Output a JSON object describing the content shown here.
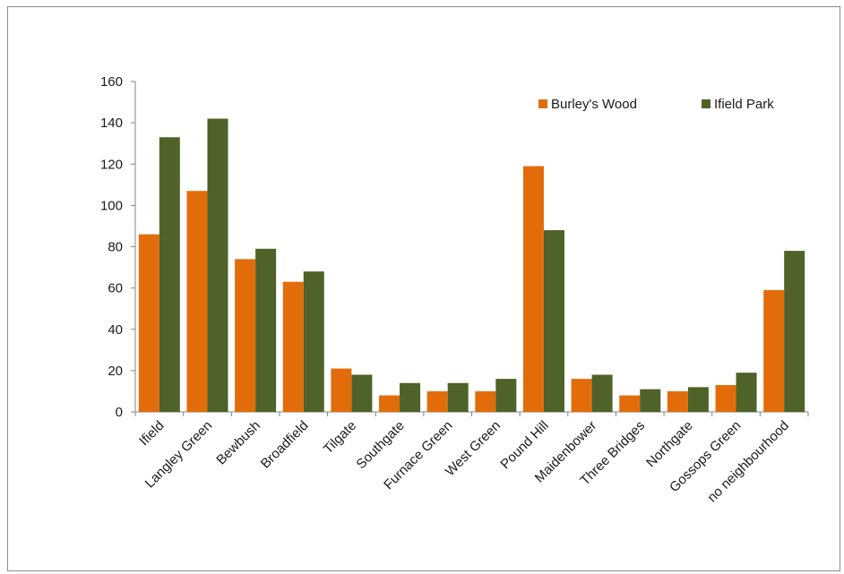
{
  "chart_data": {
    "type": "bar",
    "title": "",
    "xlabel": "",
    "ylabel": "",
    "ylim": [
      0,
      160
    ],
    "yticks": [
      0,
      20,
      40,
      60,
      80,
      100,
      120,
      140,
      160
    ],
    "grid": false,
    "legend_position": "top-right",
    "categories": [
      "Ifield",
      "Langley Green",
      "Bewbush",
      "Broadfield",
      "Tilgate",
      "Southgate",
      "Furnace Green",
      "West Green",
      "Pound Hill",
      "Maidenbower",
      "Three Bridges",
      "Northgate",
      "Gossops Green",
      "no neighbourhood"
    ],
    "series": [
      {
        "name": "Burley's Wood",
        "color": "#e36c0a",
        "values": [
          86,
          107,
          74,
          63,
          21,
          8,
          10,
          10,
          119,
          16,
          8,
          10,
          13,
          59
        ]
      },
      {
        "name": "Ifield Park",
        "color": "#4f6228",
        "values": [
          133,
          142,
          79,
          68,
          18,
          14,
          14,
          16,
          88,
          18,
          11,
          12,
          19,
          78
        ]
      }
    ]
  }
}
